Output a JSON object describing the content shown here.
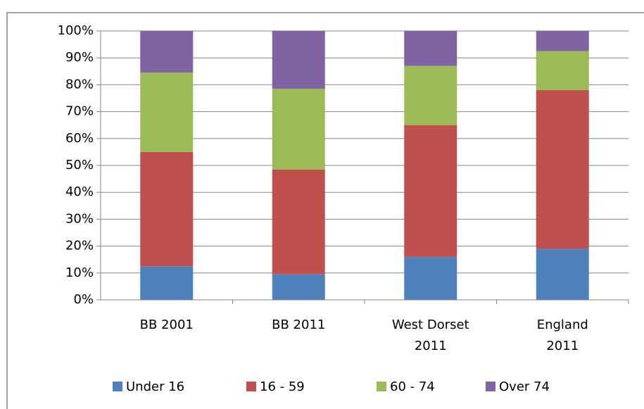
{
  "chart_data": {
    "type": "stacked_bar",
    "categories": [
      "BB 2001",
      "BB 2011",
      "West Dorset\n2011",
      "England\n2011"
    ],
    "series": [
      {
        "name": "Under 16",
        "color": "#4f81bd",
        "values": [
          12.5,
          9.5,
          16,
          19
        ]
      },
      {
        "name": "16 - 59",
        "color": "#c0504d",
        "values": [
          42.5,
          39,
          49,
          59
        ]
      },
      {
        "name": "60 - 74",
        "color": "#9bbb59",
        "values": [
          29.5,
          30,
          22,
          14.5
        ]
      },
      {
        "name": "Over 74",
        "color": "#8064a2",
        "values": [
          15.5,
          21.5,
          13,
          7.5
        ]
      }
    ],
    "ylim": [
      0,
      100
    ],
    "yticks": [
      {
        "value": 0,
        "label": "0%"
      },
      {
        "value": 10,
        "label": "10%"
      },
      {
        "value": 20,
        "label": "20%"
      },
      {
        "value": 30,
        "label": "30%"
      },
      {
        "value": 40,
        "label": "40%"
      },
      {
        "value": 50,
        "label": "50%"
      },
      {
        "value": 60,
        "label": "60%"
      },
      {
        "value": 70,
        "label": "70%"
      },
      {
        "value": 80,
        "label": "80%"
      },
      {
        "value": 90,
        "label": "90%"
      },
      {
        "value": 100,
        "label": "100%"
      }
    ],
    "grid": true,
    "legend": "bottom"
  }
}
